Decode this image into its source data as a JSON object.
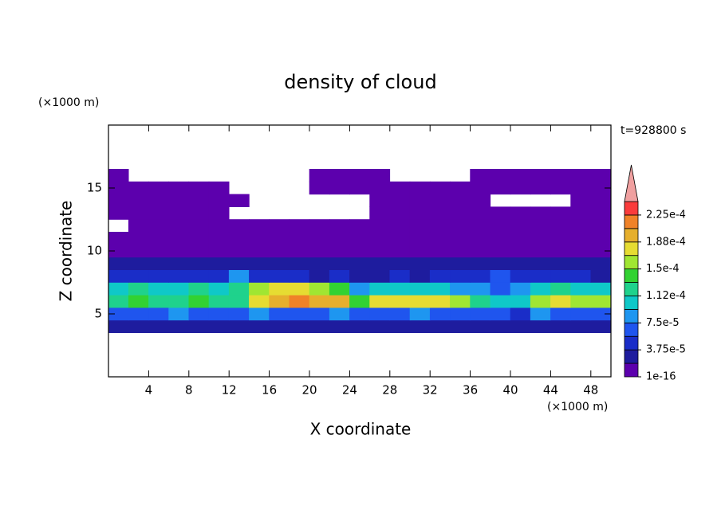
{
  "chart_data": {
    "type": "contour",
    "title": "density of cloud",
    "time_label": "t=928800 s",
    "xlabel": "X coordinate",
    "ylabel": "Z coordinate",
    "x_unit": "(×1000 m)",
    "y_unit": "(×1000 m)",
    "xlim": [
      0,
      50
    ],
    "ylim": [
      0,
      20
    ],
    "xticks": [
      4,
      8,
      12,
      16,
      20,
      24,
      28,
      32,
      36,
      40,
      44,
      48
    ],
    "yticks": [
      5,
      10,
      15
    ],
    "x": [
      1,
      3,
      5,
      7,
      9,
      11,
      13,
      15,
      17,
      19,
      21,
      23,
      25,
      27,
      29,
      31,
      33,
      35,
      37,
      39,
      41,
      43,
      45,
      47,
      49
    ],
    "z": [
      4,
      5,
      6,
      7,
      8,
      9,
      10,
      11,
      12,
      13,
      14,
      15,
      16
    ],
    "values": [
      [
        2e-05,
        2e-05,
        2e-05,
        2e-05,
        2e-05,
        2e-05,
        2e-05,
        2e-05,
        2e-05,
        2e-05,
        2e-05,
        2e-05,
        2e-05,
        2e-05,
        2e-05,
        2e-05,
        2e-05,
        2e-05,
        2e-05,
        2e-05,
        2e-05,
        2e-05,
        2e-05,
        2e-05,
        2e-05
      ],
      [
        6e-05,
        7e-05,
        6e-05,
        8e-05,
        6e-05,
        7e-05,
        6e-05,
        8e-05,
        7e-05,
        6e-05,
        7e-05,
        8e-05,
        6e-05,
        7e-05,
        6e-05,
        8e-05,
        7e-05,
        6e-05,
        7e-05,
        6e-05,
        5e-05,
        8e-05,
        7e-05,
        6e-05,
        7e-05
      ],
      [
        0.00013,
        0.00014,
        0.00012,
        0.00013,
        0.00014,
        0.00013,
        0.00012,
        0.00017,
        0.0002,
        0.00021,
        0.0002,
        0.00019,
        0.00014,
        0.00017,
        0.00018,
        0.00017,
        0.00018,
        0.00016,
        0.00013,
        0.00011,
        0.0001,
        0.00015,
        0.00017,
        0.00016,
        0.00015
      ],
      [
        0.00011,
        0.00012,
        0.0001,
        0.00011,
        0.00012,
        0.00011,
        0.00012,
        0.00015,
        0.00017,
        0.00018,
        0.00016,
        0.00014,
        9e-05,
        0.0001,
        0.00011,
        0.0001,
        0.00011,
        9e-05,
        8e-05,
        7e-05,
        8e-05,
        0.00011,
        0.00012,
        0.00011,
        0.0001
      ],
      [
        4e-05,
        5e-05,
        4e-05,
        4e-05,
        5e-05,
        4e-05,
        9e-05,
        5e-05,
        4e-05,
        4e-05,
        3e-05,
        4e-05,
        3e-05,
        3e-05,
        4e-05,
        3e-05,
        4e-05,
        4e-05,
        5e-05,
        6e-05,
        5e-05,
        4e-05,
        4e-05,
        4e-05,
        3e-05
      ],
      [
        2e-05,
        3e-05,
        2e-05,
        2e-05,
        3e-05,
        2e-05,
        3e-05,
        2e-05,
        2e-05,
        2e-05,
        2e-05,
        2e-05,
        2e-05,
        2e-05,
        2e-05,
        2e-05,
        2e-05,
        2e-05,
        3e-05,
        3e-05,
        2e-05,
        3e-05,
        3e-05,
        2e-05,
        2e-05
      ],
      [
        1e-05,
        1e-05,
        1e-05,
        1e-05,
        1e-05,
        1e-05,
        1e-05,
        1e-05,
        1e-05,
        1e-05,
        1e-05,
        1e-05,
        1e-05,
        1e-05,
        1e-05,
        1e-05,
        1e-05,
        1e-05,
        1e-05,
        1e-05,
        1e-05,
        1e-05,
        1e-05,
        1e-05,
        1e-05
      ],
      [
        5e-06,
        5e-06,
        5e-06,
        5e-06,
        5e-06,
        5e-06,
        5e-06,
        5e-06,
        5e-06,
        5e-06,
        5e-06,
        5e-06,
        5e-06,
        5e-06,
        5e-06,
        5e-06,
        5e-06,
        5e-06,
        5e-06,
        5e-06,
        5e-06,
        5e-06,
        5e-06,
        5e-06,
        5e-06
      ],
      [
        null,
        5e-06,
        5e-06,
        5e-06,
        5e-06,
        5e-06,
        5e-06,
        5e-06,
        5e-06,
        5e-06,
        5e-06,
        5e-06,
        5e-06,
        5e-06,
        5e-06,
        5e-06,
        5e-06,
        5e-06,
        5e-06,
        5e-06,
        5e-06,
        5e-06,
        5e-06,
        5e-06,
        5e-06
      ],
      [
        5e-06,
        5e-06,
        5e-06,
        5e-06,
        5e-06,
        5e-06,
        null,
        null,
        null,
        null,
        null,
        null,
        null,
        5e-06,
        5e-06,
        5e-06,
        5e-06,
        5e-06,
        5e-06,
        5e-06,
        5e-06,
        5e-06,
        5e-06,
        5e-06,
        5e-06
      ],
      [
        5e-06,
        5e-06,
        5e-06,
        5e-06,
        5e-06,
        5e-06,
        5e-06,
        null,
        null,
        null,
        null,
        null,
        null,
        5e-06,
        5e-06,
        5e-06,
        5e-06,
        5e-06,
        5e-06,
        null,
        null,
        null,
        null,
        5e-06,
        5e-06
      ],
      [
        5e-06,
        5e-06,
        5e-06,
        5e-06,
        5e-06,
        5e-06,
        null,
        null,
        null,
        null,
        5e-06,
        5e-06,
        5e-06,
        5e-06,
        5e-06,
        5e-06,
        5e-06,
        5e-06,
        5e-06,
        5e-06,
        5e-06,
        5e-06,
        5e-06,
        5e-06,
        5e-06
      ],
      [
        5e-06,
        null,
        null,
        null,
        null,
        null,
        null,
        null,
        null,
        null,
        5e-06,
        5e-06,
        5e-06,
        5e-06,
        null,
        null,
        null,
        null,
        5e-06,
        5e-06,
        5e-06,
        5e-06,
        5e-06,
        5e-06,
        5e-06
      ]
    ],
    "levels": [
      1e-16,
      1.875e-05,
      3.75e-05,
      5.625e-05,
      7.5e-05,
      9.375e-05,
      0.0001125,
      0.00013125,
      0.00015,
      0.00016875,
      0.0001875,
      0.00020625,
      0.000225,
      0.00024375
    ],
    "colors": [
      "#5c00ad",
      "#1e1c9e",
      "#1a2dc8",
      "#1f55ee",
      "#1e96f0",
      "#0fc8c8",
      "#1fd28c",
      "#32d232",
      "#a0e632",
      "#e6dc32",
      "#e6af2d",
      "#f08228",
      "#fa3c3c"
    ],
    "over_color": "#f0a0a0",
    "cbticks": [
      {
        "value": 1e-16,
        "label": "1e-16"
      },
      {
        "value": 3.75e-05,
        "label": "3.75e-5"
      },
      {
        "value": 7.5e-05,
        "label": "7.5e-5"
      },
      {
        "value": 0.0001125,
        "label": "1.12e-4"
      },
      {
        "value": 0.00015,
        "label": "1.5e-4"
      },
      {
        "value": 0.0001875,
        "label": "1.88e-4"
      },
      {
        "value": 0.000225,
        "label": "2.25e-4"
      }
    ]
  }
}
